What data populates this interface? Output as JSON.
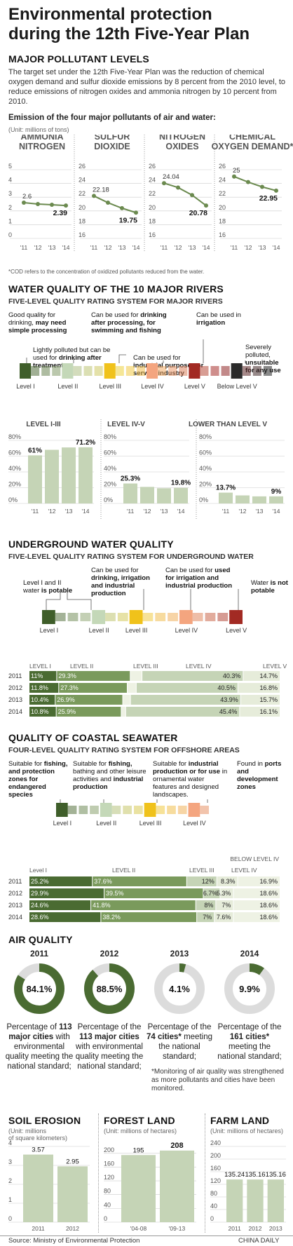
{
  "title_line1": "Environmental protection",
  "title_line2": "during the 12th Five-Year Plan",
  "pollutants": {
    "heading": "MAJOR POLLUTANT LEVELS",
    "intro": "The target set under the 12th Five-Year Plan was the reduction of chemical oxygen demand and sulfur dioxide emissions by 8 percent from the 2010 level, to reduce emissions of nitrogen oxides and ammonia nitrogen by 10 percent from 2010.",
    "subheading": "Emission of the four major pollutants of air and water:",
    "unit": "(Unit: millions of tons)",
    "footnote": "*COD refers to the concentration of oxidized pollutants reduced from the water."
  },
  "rivers": {
    "heading": "WATER QUALITY OF THE 10 MAJOR RIVERS",
    "subheading": "FIVE-LEVEL QUALITY RATING SYSTEM FOR MAJOR RIVERS",
    "levels": [
      "Level I",
      "Level II",
      "Level III",
      "Level IV",
      "Level V",
      "Below Level V"
    ]
  },
  "ground": {
    "heading": "UNDERGROUND WATER QUALITY",
    "subheading": "FIVE-LEVEL QUALITY RATING SYSTEM FOR UNDERGROUND WATER",
    "levels": [
      "Level I",
      "Level II",
      "Level III",
      "Level IV",
      "Level V"
    ]
  },
  "coastal": {
    "heading": "QUALITY OF COASTAL SEAWATER",
    "subheading": "FOUR-LEVEL QUALITY RATING SYSTEM FOR OFFSHORE AREAS",
    "levels": [
      "Level I",
      "Level II",
      "Level III",
      "Level IV"
    ]
  },
  "air": {
    "heading": "AIR QUALITY",
    "footnote": "*Monitoring of air quality was strengthened as more pollutants and cities have been monitored."
  },
  "land": {
    "soil_title": "SOIL EROSION",
    "soil_unit_1": "(Unit: millions",
    "soil_unit_2": "of square kilometers)",
    "forest_title": "FOREST LAND",
    "forest_unit": "(Unit: millions of hectares)",
    "farm_title": "FARM LAND",
    "farm_unit": "(Unit: millions of hectares)"
  },
  "source": "Source: Ministry of Environmental Protection",
  "credit": "CHINA DAILY",
  "chart_data": [
    {
      "id": "pollutant-ammonia",
      "type": "line",
      "title": "AMMONIA NITROGEN",
      "categories": [
        "'11",
        "'12",
        "'13",
        "'14"
      ],
      "values": [
        2.6,
        2.5,
        2.45,
        2.39
      ],
      "labels": [
        "2.6",
        "",
        "",
        "2.39"
      ],
      "yticks": [
        0,
        1,
        2,
        3,
        4,
        5
      ],
      "ylim": [
        0,
        5
      ]
    },
    {
      "id": "pollutant-sulfur",
      "type": "line",
      "title": "SULFUR DIOXIDE",
      "categories": [
        "'11",
        "'12",
        "'13",
        "'14"
      ],
      "values": [
        22.18,
        21.2,
        20.4,
        19.75
      ],
      "labels": [
        "22.18",
        "",
        "",
        "19.75"
      ],
      "yticks": [
        16,
        18,
        20,
        22,
        24,
        26
      ],
      "ylim": [
        16,
        26
      ]
    },
    {
      "id": "pollutant-nitrogen",
      "type": "line",
      "title": "NITROGEN OXIDES",
      "categories": [
        "'11",
        "'12",
        "'13",
        "'14"
      ],
      "values": [
        24.04,
        23.4,
        22.3,
        20.78
      ],
      "labels": [
        "24.04",
        "",
        "",
        "20.78"
      ],
      "yticks": [
        16,
        18,
        20,
        22,
        24,
        26
      ],
      "ylim": [
        16,
        26
      ]
    },
    {
      "id": "pollutant-cod",
      "type": "line",
      "title": "CHEMICAL OXYGEN DEMAND*",
      "categories": [
        "'11",
        "'12",
        "'13",
        "'14"
      ],
      "values": [
        25,
        24.2,
        23.5,
        22.95
      ],
      "labels": [
        "25",
        "",
        "",
        "22.95"
      ],
      "yticks": [
        16,
        18,
        20,
        22,
        24,
        26
      ],
      "ylim": [
        16,
        26
      ]
    },
    {
      "id": "rivers-i-iii",
      "type": "bar",
      "title": "LEVEL I-III",
      "categories": [
        "'11",
        "'12",
        "'13",
        "'14"
      ],
      "values": [
        61,
        68,
        71,
        71.2
      ],
      "labels": [
        "61%",
        "",
        "",
        "71.2%"
      ],
      "yticks": [
        0,
        20,
        40,
        60,
        80
      ],
      "ylim": [
        0,
        80
      ]
    },
    {
      "id": "rivers-iv-v",
      "type": "bar",
      "title": "LEVEL IV-V",
      "categories": [
        "'11",
        "'12",
        "'13",
        "'14"
      ],
      "values": [
        25.3,
        21,
        19.3,
        19.8
      ],
      "labels": [
        "25.3%",
        "",
        "",
        "19.8%"
      ],
      "yticks": [
        0,
        20,
        40,
        60,
        80
      ],
      "ylim": [
        0,
        80
      ]
    },
    {
      "id": "rivers-below-v",
      "type": "bar",
      "title": "LOWER THAN LEVEL V",
      "categories": [
        "'11",
        "'12",
        "'13",
        "'14"
      ],
      "values": [
        13.7,
        10.2,
        9,
        9
      ],
      "labels": [
        "13.7%",
        "",
        "",
        "9%"
      ],
      "yticks": [
        0,
        20,
        40,
        60,
        80
      ],
      "ylim": [
        0,
        80
      ]
    },
    {
      "id": "ground-water",
      "type": "bar",
      "stacked": true,
      "categories": [
        "2011",
        "2012",
        "2013",
        "2014"
      ],
      "series": [
        {
          "name": "LEVEL I",
          "values": [
            11,
            11.8,
            10.4,
            10.8
          ]
        },
        {
          "name": "LEVEL II",
          "values": [
            29.3,
            27.3,
            26.9,
            25.9
          ]
        },
        {
          "name": "LEVEL III",
          "values": [
            4.7,
            3.6,
            3.1,
            1.8
          ]
        },
        {
          "name": "LEVEL IV",
          "values": [
            40.3,
            40.5,
            43.9,
            45.4
          ]
        },
        {
          "name": "LEVEL V",
          "values": [
            14.7,
            16.8,
            15.7,
            16.1
          ]
        }
      ]
    },
    {
      "id": "coastal-water",
      "type": "bar",
      "stacked": true,
      "categories": [
        "2011",
        "2012",
        "2013",
        "2014"
      ],
      "series": [
        {
          "name": "Level I",
          "values": [
            25.2,
            29.9,
            24.6,
            28.6
          ]
        },
        {
          "name": "LEVEL II",
          "values": [
            37.6,
            39.5,
            41.8,
            38.2
          ]
        },
        {
          "name": "LEVEL III",
          "values": [
            12,
            6.7,
            8,
            7
          ]
        },
        {
          "name": "LEVEL IV",
          "values": [
            8.3,
            5.3,
            7,
            7.6
          ]
        },
        {
          "name": "BELOW LEVEL IV",
          "values": [
            16.9,
            18.6,
            18.6,
            18.6
          ]
        }
      ]
    },
    {
      "id": "air-2011",
      "type": "pie",
      "title": "2011",
      "value": 84.1,
      "label": "84.1%",
      "caption_pre": "Percentage of",
      "caption_count": "113 major cities",
      "caption_post": "with environmental quality meeting the national standard;"
    },
    {
      "id": "air-2012",
      "type": "pie",
      "title": "2012",
      "value": 88.5,
      "label": "88.5%",
      "caption_pre": "Percentage of the",
      "caption_count": "113 major cities",
      "caption_post": "with environmental quality meeting the national standard;"
    },
    {
      "id": "air-2013",
      "type": "pie",
      "title": "2013",
      "value": 4.1,
      "label": "4.1%",
      "caption_pre": "Percentage of the",
      "caption_count": "74 cities*",
      "caption_post": "meeting the national standard;"
    },
    {
      "id": "air-2014",
      "type": "pie",
      "title": "2014",
      "value": 9.9,
      "label": "9.9%",
      "caption_pre": "Percentage of the",
      "caption_count": "161 cities*",
      "caption_post": "meeting the national standard;"
    },
    {
      "id": "soil-erosion",
      "type": "bar",
      "title": "SOIL EROSION",
      "categories": [
        "2011",
        "2012"
      ],
      "values": [
        3.57,
        2.95
      ],
      "labels": [
        "3.57",
        "2.95"
      ],
      "yticks": [
        0,
        1,
        2,
        3,
        4
      ],
      "ylim": [
        0,
        4
      ]
    },
    {
      "id": "forest-land",
      "type": "bar",
      "title": "FOREST LAND",
      "categories": [
        "'04-08",
        "'09-13"
      ],
      "values": [
        195,
        208
      ],
      "labels": [
        "195",
        "208"
      ],
      "yticks": [
        0,
        40,
        80,
        120,
        160,
        200
      ],
      "ylim": [
        0,
        220
      ]
    },
    {
      "id": "farm-land",
      "type": "bar",
      "title": "FARM LAND",
      "categories": [
        "2011",
        "2012",
        "2013"
      ],
      "values": [
        135.24,
        135.16,
        135.16
      ],
      "labels": [
        "135.24",
        "135.16",
        "135.16"
      ],
      "yticks": [
        0,
        40,
        80,
        120,
        160,
        200,
        240
      ],
      "ylim": [
        0,
        240
      ]
    }
  ]
}
